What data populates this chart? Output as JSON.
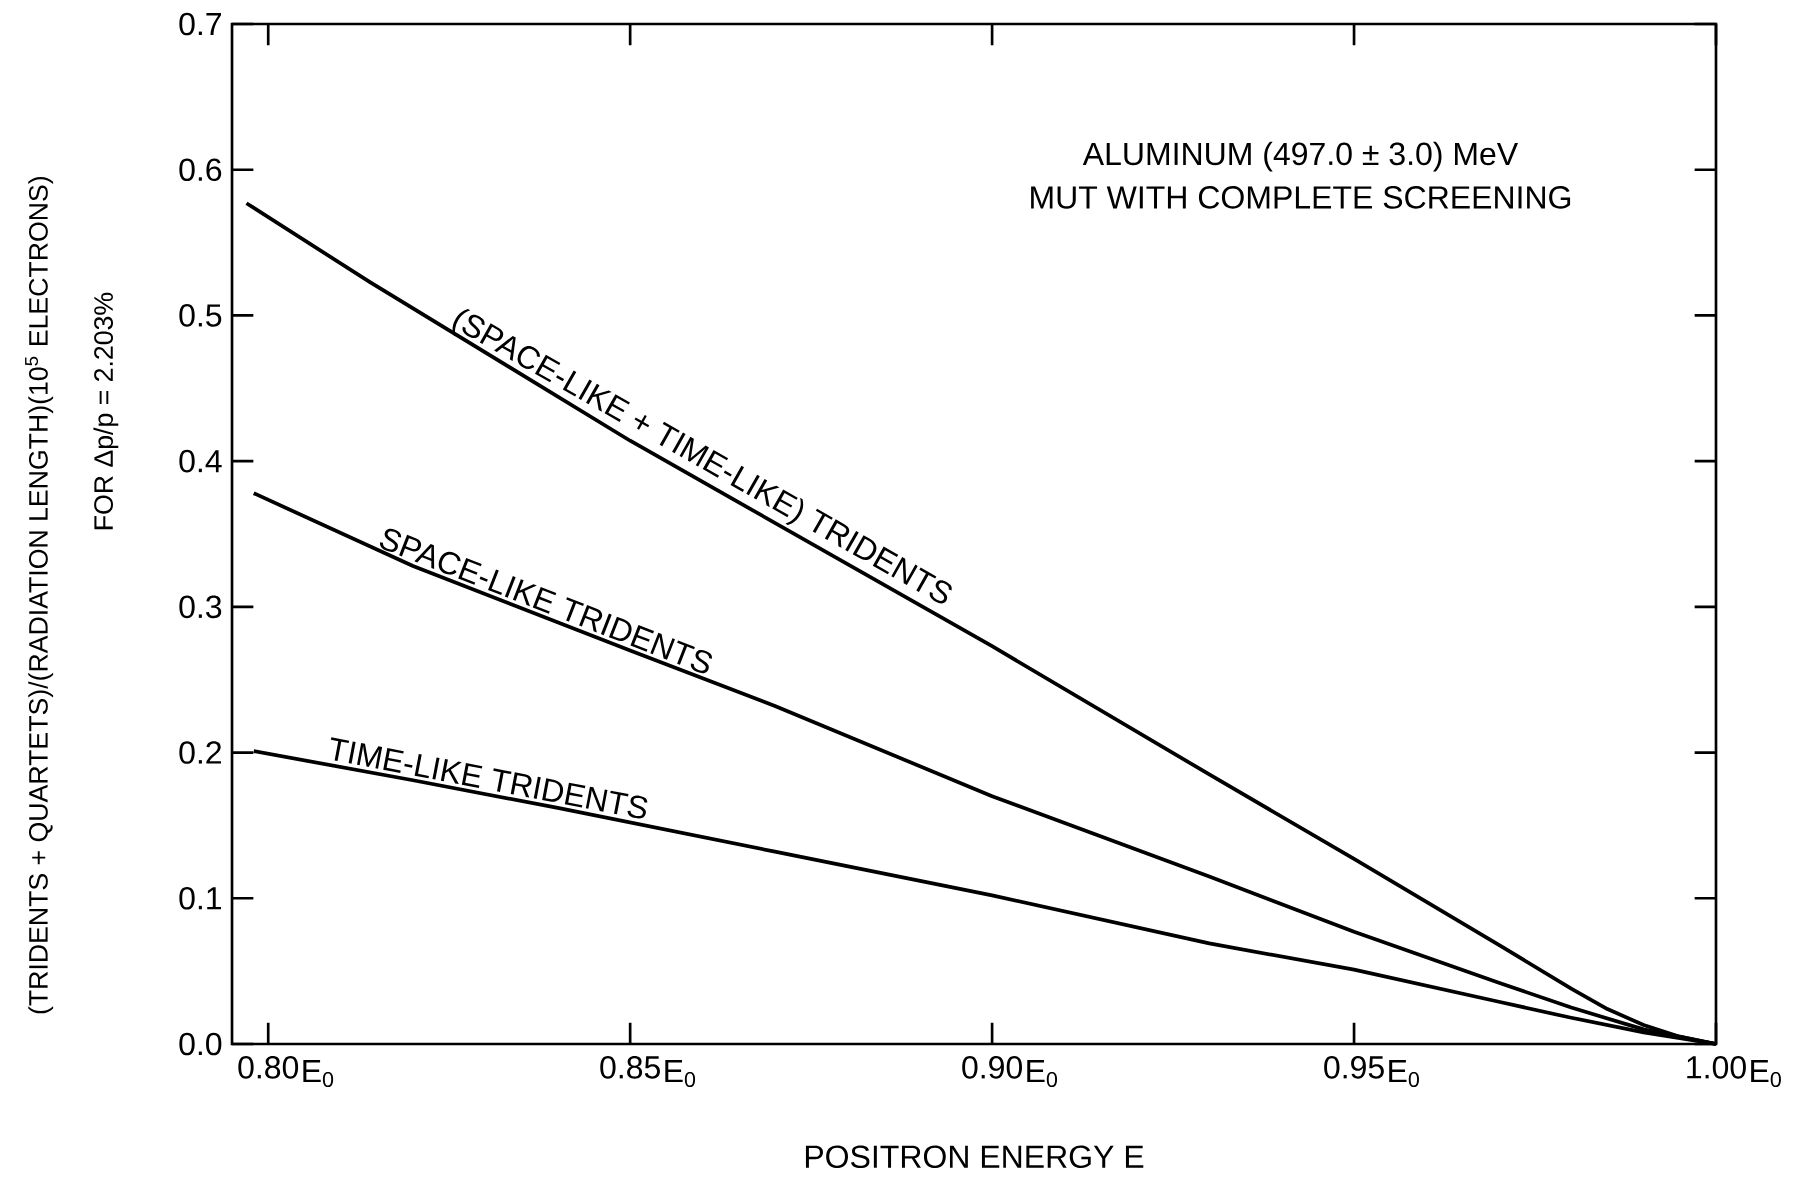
{
  "chart_data": {
    "type": "line",
    "xlabel": "POSITRON ENERGY E",
    "ylabel": "(TRIDENTS + QUARTETS)/(RADIATION LENGTH)(10$^{5}$ ELECTRONS)",
    "annotations": [
      "FOR Δp/p = 2.203%",
      "ALUMINUM (497.0 ± 3.0) MeV",
      "MUT WITH COMPLETE SCREENING",
      "E$_{0}$",
      "E$_{0}$",
      "E$_{0}$",
      "E$_{0}$",
      "E$_{0}$"
    ],
    "xlim": [
      0.795,
      1.0
    ],
    "xticks": [
      {
        "value": 0.8,
        "label": "0.80"
      },
      {
        "value": 0.85,
        "label": "0.85"
      },
      {
        "value": 0.9,
        "label": "0.90"
      },
      {
        "value": 0.95,
        "label": "0.95"
      },
      {
        "value": 1.0,
        "label": "1.00"
      }
    ],
    "ylim": [
      0,
      0.7
    ],
    "yticks": [
      {
        "value": 0,
        "label": "0.0"
      },
      {
        "value": 0.1,
        "label": "0.1"
      },
      {
        "value": 0.2,
        "label": "0.2"
      },
      {
        "value": 0.3,
        "label": "0.3"
      },
      {
        "value": 0.4,
        "label": "0.4"
      },
      {
        "value": 0.5,
        "label": "0.5"
      },
      {
        "value": 0.6,
        "label": "0.6"
      },
      {
        "value": 0.7,
        "label": "0.7"
      }
    ],
    "grid": false,
    "legend": false,
    "marker": "none",
    "line_style": "solid",
    "series": [
      {
        "name": "(SPACE-LIKE + TIME-LIKE) TRIDENTS",
        "color": "#000000",
        "x": [
          0.797,
          0.814,
          0.85,
          0.9,
          0.93,
          0.95,
          0.97,
          0.98,
          0.985,
          0.99,
          0.995,
          1.0
        ],
        "values": [
          0.577,
          0.523,
          0.414,
          0.273,
          0.185,
          0.127,
          0.068,
          0.038,
          0.024,
          0.013,
          0.005,
          0
        ]
      },
      {
        "name": "SPACE-LIKE TRIDENTS",
        "color": "#000000",
        "x": [
          0.798,
          0.82,
          0.85,
          0.87,
          0.9,
          0.93,
          0.95,
          0.97,
          0.98,
          0.99,
          1.0
        ],
        "values": [
          0.378,
          0.328,
          0.27,
          0.232,
          0.17,
          0.115,
          0.077,
          0.042,
          0.025,
          0.01,
          0
        ]
      },
      {
        "name": "TIME-LIKE TRIDENTS",
        "color": "#000000",
        "x": [
          0.798,
          0.82,
          0.84,
          0.87,
          0.9,
          0.93,
          0.95,
          0.97,
          0.98,
          0.99,
          1.0
        ],
        "values": [
          0.201,
          0.181,
          0.162,
          0.132,
          0.102,
          0.069,
          0.051,
          0.029,
          0.018,
          0.008,
          0
        ]
      }
    ]
  }
}
